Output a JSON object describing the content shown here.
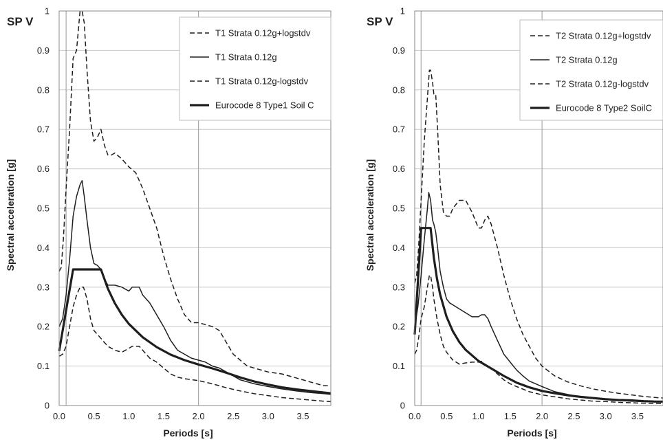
{
  "chart_data": [
    {
      "type": "line",
      "title": "SP V",
      "xlabel": "Periods [s]",
      "ylabel": "Spectral acceleration [g]",
      "xlim": [
        0,
        3.9
      ],
      "ylim": [
        0,
        1
      ],
      "xticks": [
        "0.0",
        "0.5",
        "1.0",
        "1.5",
        "2.0",
        "2.5",
        "3.0",
        "3.5"
      ],
      "yticks": [
        "0",
        "0.1",
        "0.2",
        "0.3",
        "0.4",
        "0.5",
        "0.6",
        "0.7",
        "0.8",
        "0.9",
        "1"
      ],
      "vlines_x": [
        0.1,
        2.0
      ],
      "legend_position": "top-right",
      "series": [
        {
          "name": "T1 Strata 0.12g+logstdv",
          "style": "dashed",
          "width": 1.5,
          "x": [
            0,
            0.03,
            0.06,
            0.1,
            0.15,
            0.2,
            0.25,
            0.3,
            0.33,
            0.36,
            0.4,
            0.45,
            0.5,
            0.55,
            0.6,
            0.65,
            0.7,
            0.75,
            0.8,
            0.9,
            1.0,
            1.1,
            1.2,
            1.3,
            1.4,
            1.5,
            1.6,
            1.7,
            1.8,
            1.9,
            2.0,
            2.1,
            2.2,
            2.3,
            2.4,
            2.5,
            2.6,
            2.7,
            2.8,
            3.0,
            3.2,
            3.4,
            3.6,
            3.8,
            3.9
          ],
          "y": [
            0.34,
            0.35,
            0.42,
            0.55,
            0.7,
            0.88,
            0.9,
            1.0,
            1.0,
            0.97,
            0.85,
            0.72,
            0.67,
            0.68,
            0.7,
            0.66,
            0.635,
            0.635,
            0.64,
            0.625,
            0.605,
            0.59,
            0.55,
            0.5,
            0.45,
            0.38,
            0.32,
            0.27,
            0.23,
            0.21,
            0.21,
            0.205,
            0.2,
            0.19,
            0.16,
            0.13,
            0.115,
            0.1,
            0.095,
            0.085,
            0.08,
            0.07,
            0.06,
            0.05,
            0.05
          ]
        },
        {
          "name": "T1 Strata 0.12g",
          "style": "solid",
          "width": 1.5,
          "x": [
            0,
            0.05,
            0.1,
            0.15,
            0.2,
            0.25,
            0.3,
            0.33,
            0.36,
            0.4,
            0.45,
            0.5,
            0.55,
            0.6,
            0.65,
            0.7,
            0.8,
            0.9,
            1.0,
            1.05,
            1.1,
            1.15,
            1.2,
            1.3,
            1.4,
            1.5,
            1.6,
            1.7,
            1.8,
            1.9,
            2.0,
            2.1,
            2.2,
            2.3,
            2.4,
            2.6,
            2.8,
            3.0,
            3.2,
            3.4,
            3.6,
            3.8,
            3.9
          ],
          "y": [
            0.2,
            0.22,
            0.28,
            0.37,
            0.48,
            0.53,
            0.56,
            0.57,
            0.53,
            0.47,
            0.4,
            0.36,
            0.355,
            0.345,
            0.32,
            0.305,
            0.305,
            0.3,
            0.29,
            0.3,
            0.3,
            0.3,
            0.28,
            0.26,
            0.23,
            0.2,
            0.165,
            0.14,
            0.13,
            0.12,
            0.115,
            0.11,
            0.1,
            0.095,
            0.085,
            0.065,
            0.055,
            0.048,
            0.042,
            0.037,
            0.033,
            0.03,
            0.028
          ]
        },
        {
          "name": "T1 Strata 0.12g-logstdv",
          "style": "dashed",
          "width": 1.5,
          "x": [
            0,
            0.05,
            0.1,
            0.15,
            0.2,
            0.25,
            0.3,
            0.35,
            0.4,
            0.45,
            0.5,
            0.55,
            0.6,
            0.65,
            0.7,
            0.8,
            0.9,
            1.0,
            1.05,
            1.1,
            1.15,
            1.2,
            1.3,
            1.4,
            1.5,
            1.6,
            1.7,
            1.8,
            2.0,
            2.2,
            2.4,
            2.6,
            2.8,
            3.0,
            3.2,
            3.4,
            3.6,
            3.8,
            3.9
          ],
          "y": [
            0.125,
            0.13,
            0.15,
            0.2,
            0.25,
            0.28,
            0.3,
            0.3,
            0.27,
            0.22,
            0.19,
            0.18,
            0.17,
            0.16,
            0.15,
            0.14,
            0.135,
            0.145,
            0.15,
            0.15,
            0.15,
            0.14,
            0.12,
            0.11,
            0.095,
            0.08,
            0.072,
            0.068,
            0.063,
            0.055,
            0.045,
            0.037,
            0.03,
            0.025,
            0.02,
            0.017,
            0.014,
            0.011,
            0.01
          ]
        },
        {
          "name": "Eurocode 8 Type1 Soil C",
          "style": "solid",
          "width": 3.2,
          "x": [
            0,
            0.2,
            0.6,
            0.7,
            0.8,
            0.9,
            1.0,
            1.2,
            1.4,
            1.6,
            1.8,
            2.0,
            2.2,
            2.4,
            2.6,
            2.8,
            3.0,
            3.2,
            3.4,
            3.6,
            3.8,
            3.9
          ],
          "y": [
            0.138,
            0.345,
            0.345,
            0.296,
            0.259,
            0.23,
            0.207,
            0.173,
            0.148,
            0.129,
            0.115,
            0.104,
            0.094,
            0.083,
            0.071,
            0.061,
            0.053,
            0.046,
            0.041,
            0.037,
            0.033,
            0.031
          ]
        }
      ]
    },
    {
      "type": "line",
      "title": "SP V",
      "xlabel": "Periods [s]",
      "ylabel": "Spectral acceleration [g]",
      "xlim": [
        0,
        3.9
      ],
      "ylim": [
        0,
        1
      ],
      "xticks": [
        "0.0",
        "0.5",
        "1.0",
        "1.5",
        "2.0",
        "2.5",
        "3.0",
        "3.5"
      ],
      "yticks": [
        "0",
        "0.1",
        "0.2",
        "0.3",
        "0.4",
        "0.5",
        "0.6",
        "0.7",
        "0.8",
        "0.9",
        "1"
      ],
      "vlines_x": [
        0.1,
        2.0
      ],
      "legend_position": "top-right",
      "series": [
        {
          "name": "T2 Strata 0.12g+logstdv",
          "style": "dashed",
          "width": 1.5,
          "x": [
            0,
            0.03,
            0.06,
            0.1,
            0.15,
            0.2,
            0.23,
            0.25,
            0.28,
            0.3,
            0.33,
            0.36,
            0.4,
            0.45,
            0.5,
            0.55,
            0.6,
            0.7,
            0.8,
            0.9,
            0.95,
            1.0,
            1.05,
            1.1,
            1.15,
            1.2,
            1.3,
            1.4,
            1.5,
            1.6,
            1.7,
            1.8,
            1.9,
            2.0,
            2.2,
            2.4,
            2.6,
            2.8,
            3.0,
            3.2,
            3.4,
            3.6,
            3.8,
            3.9
          ],
          "y": [
            0.31,
            0.33,
            0.4,
            0.52,
            0.67,
            0.78,
            0.85,
            0.85,
            0.82,
            0.79,
            0.79,
            0.7,
            0.56,
            0.49,
            0.48,
            0.48,
            0.5,
            0.52,
            0.52,
            0.49,
            0.47,
            0.45,
            0.45,
            0.47,
            0.48,
            0.46,
            0.4,
            0.33,
            0.27,
            0.22,
            0.18,
            0.15,
            0.12,
            0.1,
            0.075,
            0.06,
            0.05,
            0.042,
            0.036,
            0.031,
            0.027,
            0.023,
            0.02,
            0.019
          ]
        },
        {
          "name": "T2 Strata 0.12g",
          "style": "solid",
          "width": 1.5,
          "x": [
            0,
            0.05,
            0.1,
            0.15,
            0.2,
            0.22,
            0.25,
            0.28,
            0.3,
            0.33,
            0.36,
            0.4,
            0.45,
            0.5,
            0.55,
            0.6,
            0.7,
            0.8,
            0.9,
            1.0,
            1.05,
            1.1,
            1.15,
            1.2,
            1.3,
            1.4,
            1.5,
            1.6,
            1.7,
            1.8,
            2.0,
            2.2,
            2.4,
            2.6,
            2.8,
            3.0,
            3.2,
            3.4,
            3.6,
            3.8,
            3.9
          ],
          "y": [
            0.2,
            0.25,
            0.33,
            0.42,
            0.5,
            0.54,
            0.52,
            0.47,
            0.46,
            0.44,
            0.4,
            0.34,
            0.3,
            0.27,
            0.26,
            0.255,
            0.245,
            0.235,
            0.225,
            0.225,
            0.23,
            0.23,
            0.22,
            0.2,
            0.165,
            0.13,
            0.11,
            0.09,
            0.075,
            0.062,
            0.048,
            0.035,
            0.028,
            0.022,
            0.018,
            0.015,
            0.013,
            0.011,
            0.01,
            0.009,
            0.009
          ]
        },
        {
          "name": "T2 Strata 0.12g-logstdv",
          "style": "dashed",
          "width": 1.5,
          "x": [
            0,
            0.03,
            0.06,
            0.1,
            0.15,
            0.2,
            0.23,
            0.25,
            0.28,
            0.3,
            0.35,
            0.4,
            0.45,
            0.5,
            0.55,
            0.6,
            0.7,
            0.8,
            0.9,
            1.0,
            1.05,
            1.1,
            1.15,
            1.2,
            1.3,
            1.4,
            1.5,
            1.6,
            1.8,
            2.0,
            2.2,
            2.4,
            2.6,
            2.8,
            3.0,
            3.2,
            3.4,
            3.6,
            3.8,
            3.9
          ],
          "y": [
            0.13,
            0.14,
            0.17,
            0.22,
            0.25,
            0.3,
            0.33,
            0.33,
            0.3,
            0.27,
            0.22,
            0.18,
            0.15,
            0.135,
            0.125,
            0.115,
            0.105,
            0.108,
            0.11,
            0.11,
            0.112,
            0.105,
            0.1,
            0.095,
            0.08,
            0.065,
            0.055,
            0.048,
            0.035,
            0.027,
            0.022,
            0.017,
            0.014,
            0.011,
            0.01,
            0.008,
            0.007,
            0.006,
            0.005,
            0.005
          ]
        },
        {
          "name": "Eurocode 8 Type2 SoilC",
          "style": "solid",
          "width": 3.2,
          "x": [
            0,
            0.1,
            0.25,
            0.3,
            0.35,
            0.4,
            0.5,
            0.6,
            0.7,
            0.8,
            1.0,
            1.2,
            1.4,
            1.6,
            1.8,
            2.0,
            2.2,
            2.4,
            2.6,
            2.8,
            3.0,
            3.2,
            3.4,
            3.6,
            3.8,
            3.9
          ],
          "y": [
            0.18,
            0.45,
            0.45,
            0.375,
            0.321,
            0.281,
            0.225,
            0.188,
            0.161,
            0.141,
            0.113,
            0.094,
            0.075,
            0.058,
            0.046,
            0.037,
            0.031,
            0.026,
            0.022,
            0.019,
            0.016,
            0.014,
            0.013,
            0.011,
            0.01,
            0.01
          ]
        }
      ]
    }
  ]
}
